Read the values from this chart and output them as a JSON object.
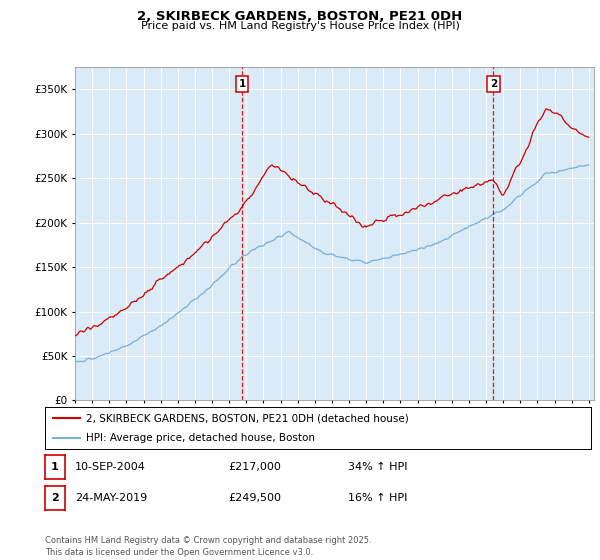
{
  "title": "2, SKIRBECK GARDENS, BOSTON, PE21 0DH",
  "subtitle": "Price paid vs. HM Land Registry's House Price Index (HPI)",
  "ylabel_values": [
    0,
    50000,
    100000,
    150000,
    200000,
    250000,
    300000,
    350000
  ],
  "x_start_year": 1995,
  "x_end_year": 2025,
  "red_line_color": "#cc0000",
  "blue_line_color": "#7aafd4",
  "marker1_year": 2004.75,
  "marker2_year": 2019.42,
  "marker1_price": 217000,
  "marker2_price": 249500,
  "legend_entry1": "2, SKIRBECK GARDENS, BOSTON, PE21 0DH (detached house)",
  "legend_entry2": "HPI: Average price, detached house, Boston",
  "table_row1": [
    "1",
    "10-SEP-2004",
    "£217,000",
    "34% ↑ HPI"
  ],
  "table_row2": [
    "2",
    "24-MAY-2019",
    "£249,500",
    "16% ↑ HPI"
  ],
  "footer": "Contains HM Land Registry data © Crown copyright and database right 2025.\nThis data is licensed under the Open Government Licence v3.0.",
  "plot_bg_color": "#daeaf6",
  "ylim_max": 375000
}
